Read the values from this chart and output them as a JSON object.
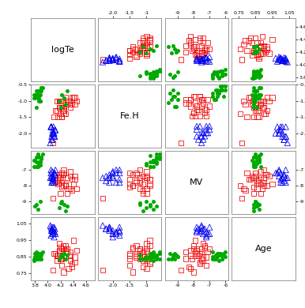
{
  "params": [
    "logTe",
    "Fe.H",
    "MV",
    "Age"
  ],
  "xlims": {
    "logTe": [
      3.73,
      4.73
    ],
    "Fe.H": [
      -2.45,
      -0.55
    ],
    "MV": [
      -9.8,
      -5.8
    ],
    "Age": [
      0.71,
      1.09
    ]
  },
  "ylims": {
    "logTe": [
      3.73,
      4.73
    ],
    "Fe.H": [
      -2.45,
      -0.55
    ],
    "MV": [
      -9.8,
      -5.8
    ],
    "Age": [
      0.71,
      1.09
    ]
  },
  "xticks": {
    "logTe": [
      3.8,
      4.0,
      4.2,
      4.4,
      4.6
    ],
    "Fe.H": [
      -2.0,
      -1.5,
      -1.0
    ],
    "MV": [
      -9.0,
      -8.0,
      -7.0,
      -6.0
    ],
    "Age": [
      0.75,
      0.85,
      0.95,
      1.05
    ]
  },
  "yticks": {
    "logTe": [
      3.8,
      4.0,
      4.2,
      4.4,
      4.6
    ],
    "Fe.H": [
      -2.0,
      -1.5,
      -1.0,
      -0.5
    ],
    "MV": [
      -9.0,
      -8.0,
      -7.0
    ],
    "Age": [
      0.75,
      0.85,
      0.95,
      1.05
    ]
  },
  "xtick_labels": {
    "logTe": [
      "3.8",
      "4.0",
      "4.2",
      "4.4",
      "4.6"
    ],
    "Fe.H": [
      "-2.0",
      "-1.5",
      "-1"
    ],
    "MV": [
      "-9",
      "-8",
      "-7",
      "-6"
    ],
    "Age": [
      "0.75",
      "0.85",
      "0.95",
      "1.05"
    ]
  },
  "ytick_labels": {
    "logTe": [
      "3.8",
      "4.0",
      "4.2",
      "4.4",
      "4.6"
    ],
    "Fe.H": [
      "-2.0",
      "-1.5",
      "-1.0",
      "-0.5"
    ],
    "MV": [
      "-9",
      "-8",
      "-7"
    ],
    "Age": [
      "0.75",
      "0.85",
      "0.95",
      "1.05"
    ]
  },
  "red": {
    "logTe": [
      4.18,
      4.22,
      4.25,
      4.28,
      4.1,
      4.35,
      4.4,
      4.45,
      4.2,
      4.15,
      4.3,
      4.25,
      4.22,
      4.18,
      4.12,
      4.38,
      4.42,
      4.35,
      4.28,
      4.2,
      4.16,
      4.24,
      4.32,
      4.38,
      4.42,
      4.18,
      4.25,
      4.22,
      4.15,
      4.08,
      4.2,
      4.35,
      4.28,
      4.3
    ],
    "Fe.H": [
      -1.0,
      -1.2,
      -1.3,
      -0.9,
      -1.5,
      -1.1,
      -0.9,
      -1.0,
      -1.4,
      -1.3,
      -1.1,
      -1.2,
      -1.5,
      -1.0,
      -1.3,
      -1.1,
      -0.9,
      -1.0,
      -1.4,
      -1.2,
      -1.5,
      -1.3,
      -1.0,
      -0.9,
      -1.1,
      -1.2,
      -1.4,
      -1.5,
      -1.0,
      -2.3,
      -1.0,
      -1.2,
      -1.1,
      -1.0
    ],
    "MV": [
      -7.5,
      -7.8,
      -7.2,
      -8.0,
      -7.6,
      -7.4,
      -7.9,
      -8.2,
      -7.3,
      -7.7,
      -8.5,
      -7.0,
      -8.1,
      -7.4,
      -7.8,
      -8.3,
      -7.6,
      -7.1,
      -8.0,
      -7.5,
      -7.9,
      -7.3,
      -8.2,
      -7.6,
      -7.4,
      -7.8,
      -8.0,
      -7.2,
      -7.5,
      -8.8,
      -8.5,
      -8.2,
      -7.9,
      -7.5
    ],
    "Age": [
      0.88,
      0.9,
      0.85,
      0.92,
      0.87,
      0.83,
      0.95,
      0.89,
      0.91,
      0.86,
      0.88,
      0.9,
      0.84,
      0.93,
      0.87,
      0.79,
      0.82,
      0.88,
      0.9,
      0.84,
      0.86,
      0.92,
      0.78,
      0.81,
      0.85,
      0.89,
      0.76,
      0.8,
      0.83,
      0.77,
      0.84,
      0.86,
      0.88,
      0.9
    ]
  },
  "blue": {
    "logTe": [
      4.05,
      4.08,
      4.1,
      4.12,
      4.06,
      4.09,
      4.07,
      4.11,
      4.04,
      4.08,
      4.1,
      4.06,
      4.05,
      4.09,
      4.07,
      4.11,
      4.08,
      4.06
    ],
    "Fe.H": [
      -1.8,
      -2.0,
      -2.1,
      -1.9,
      -2.2,
      -1.8,
      -2.0,
      -2.1,
      -2.3,
      -1.9,
      -2.0,
      -2.1,
      -1.8,
      -2.0,
      -2.2,
      -1.9,
      -2.1,
      -1.8
    ],
    "MV": [
      -7.2,
      -7.5,
      -7.8,
      -7.0,
      -7.4,
      -7.6,
      -7.1,
      -7.3,
      -7.5,
      -7.8,
      -7.2,
      -7.5,
      -7.0,
      -7.4,
      -7.7,
      -7.2,
      -7.5,
      -7.8
    ],
    "Age": [
      0.98,
      1.01,
      1.03,
      0.99,
      1.02,
      1.0,
      0.99,
      1.02,
      1.04,
      1.0,
      0.97,
      1.01,
      1.03,
      0.99,
      1.02,
      1.0,
      1.03,
      1.01
    ]
  },
  "green": {
    "logTe": [
      3.82,
      3.88,
      3.85,
      3.92,
      3.78,
      3.9,
      3.86,
      3.84,
      3.88,
      3.82,
      3.9,
      3.86,
      3.84,
      3.8,
      3.88,
      3.85,
      3.82,
      3.78,
      3.9,
      3.86,
      3.82,
      3.88,
      3.84,
      3.8,
      4.2,
      4.18,
      4.25,
      4.22,
      4.28,
      4.3
    ],
    "Fe.H": [
      -0.7,
      -0.8,
      -0.9,
      -0.6,
      -0.8,
      -0.7,
      -1.0,
      -0.9,
      -0.7,
      -0.8,
      -0.6,
      -0.9,
      -0.7,
      -0.8,
      -1.0,
      -0.7,
      -0.8,
      -0.9,
      -0.6,
      -0.7,
      -1.2,
      -1.0,
      -0.8,
      -0.9,
      -1.2,
      -1.0,
      -0.9,
      -0.8,
      -1.1,
      -0.7
    ],
    "MV": [
      -6.2,
      -6.5,
      -6.8,
      -6.0,
      -6.4,
      -6.3,
      -6.6,
      -6.1,
      -6.5,
      -6.8,
      -6.2,
      -6.5,
      -6.0,
      -6.4,
      -6.7,
      -6.2,
      -6.5,
      -6.8,
      -6.3,
      -6.6,
      -9.2,
      -9.0,
      -9.5,
      -9.3,
      -9.1,
      -9.4,
      -9.2,
      -9.0,
      -9.6,
      -9.3
    ],
    "Age": [
      0.84,
      0.87,
      0.85,
      0.88,
      0.83,
      0.86,
      0.84,
      0.87,
      0.85,
      0.88,
      0.84,
      0.86,
      0.85,
      0.87,
      0.84,
      0.86,
      0.85,
      0.84,
      0.87,
      0.86,
      0.84,
      0.85,
      0.87,
      0.85,
      0.86,
      0.84,
      0.87,
      0.85,
      0.84,
      0.86
    ]
  },
  "fig_width": 3.86,
  "fig_height": 3.9,
  "dpi": 100,
  "diagonal_labels": [
    "logTe",
    "Fe.H",
    "MV",
    "Age"
  ],
  "diagonal_fontsize": 8,
  "tick_fontsize": 4.5,
  "panel_edge_color": "#888888",
  "red_color": "#EE0000",
  "blue_color": "#0000EE",
  "green_color": "#00AA00",
  "marker_s_red": 6,
  "marker_s_blue": 7,
  "marker_s_green": 5
}
